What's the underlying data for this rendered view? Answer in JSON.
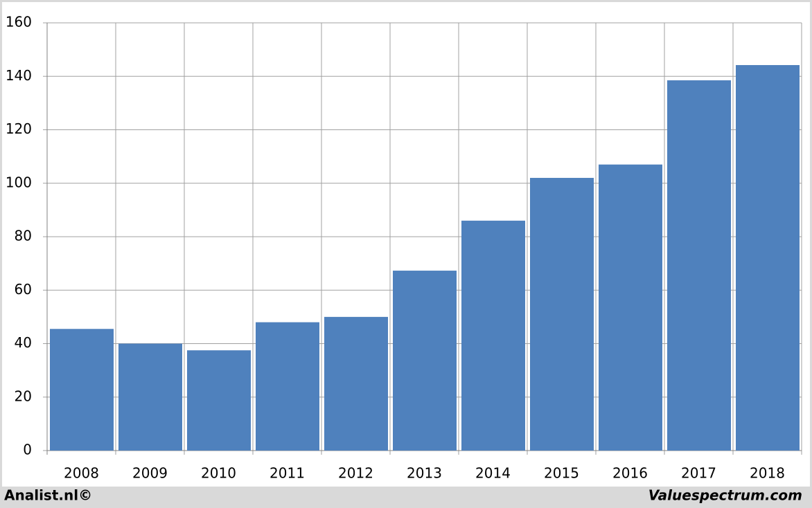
{
  "chart_data": {
    "type": "bar",
    "categories": [
      "2008",
      "2009",
      "2010",
      "2011",
      "2012",
      "2013",
      "2014",
      "2015",
      "2016",
      "2017",
      "2018"
    ],
    "values": [
      45.5,
      40,
      37.5,
      48,
      50,
      67.3,
      86,
      102,
      107,
      138.5,
      144.2
    ],
    "color": "#4f81bd",
    "ylim": [
      0,
      160
    ],
    "yticks": [
      0,
      20,
      40,
      60,
      80,
      100,
      120,
      140,
      160
    ],
    "grid": true,
    "source": "Analist.nl©",
    "credit": "Valuespectrum.com"
  }
}
